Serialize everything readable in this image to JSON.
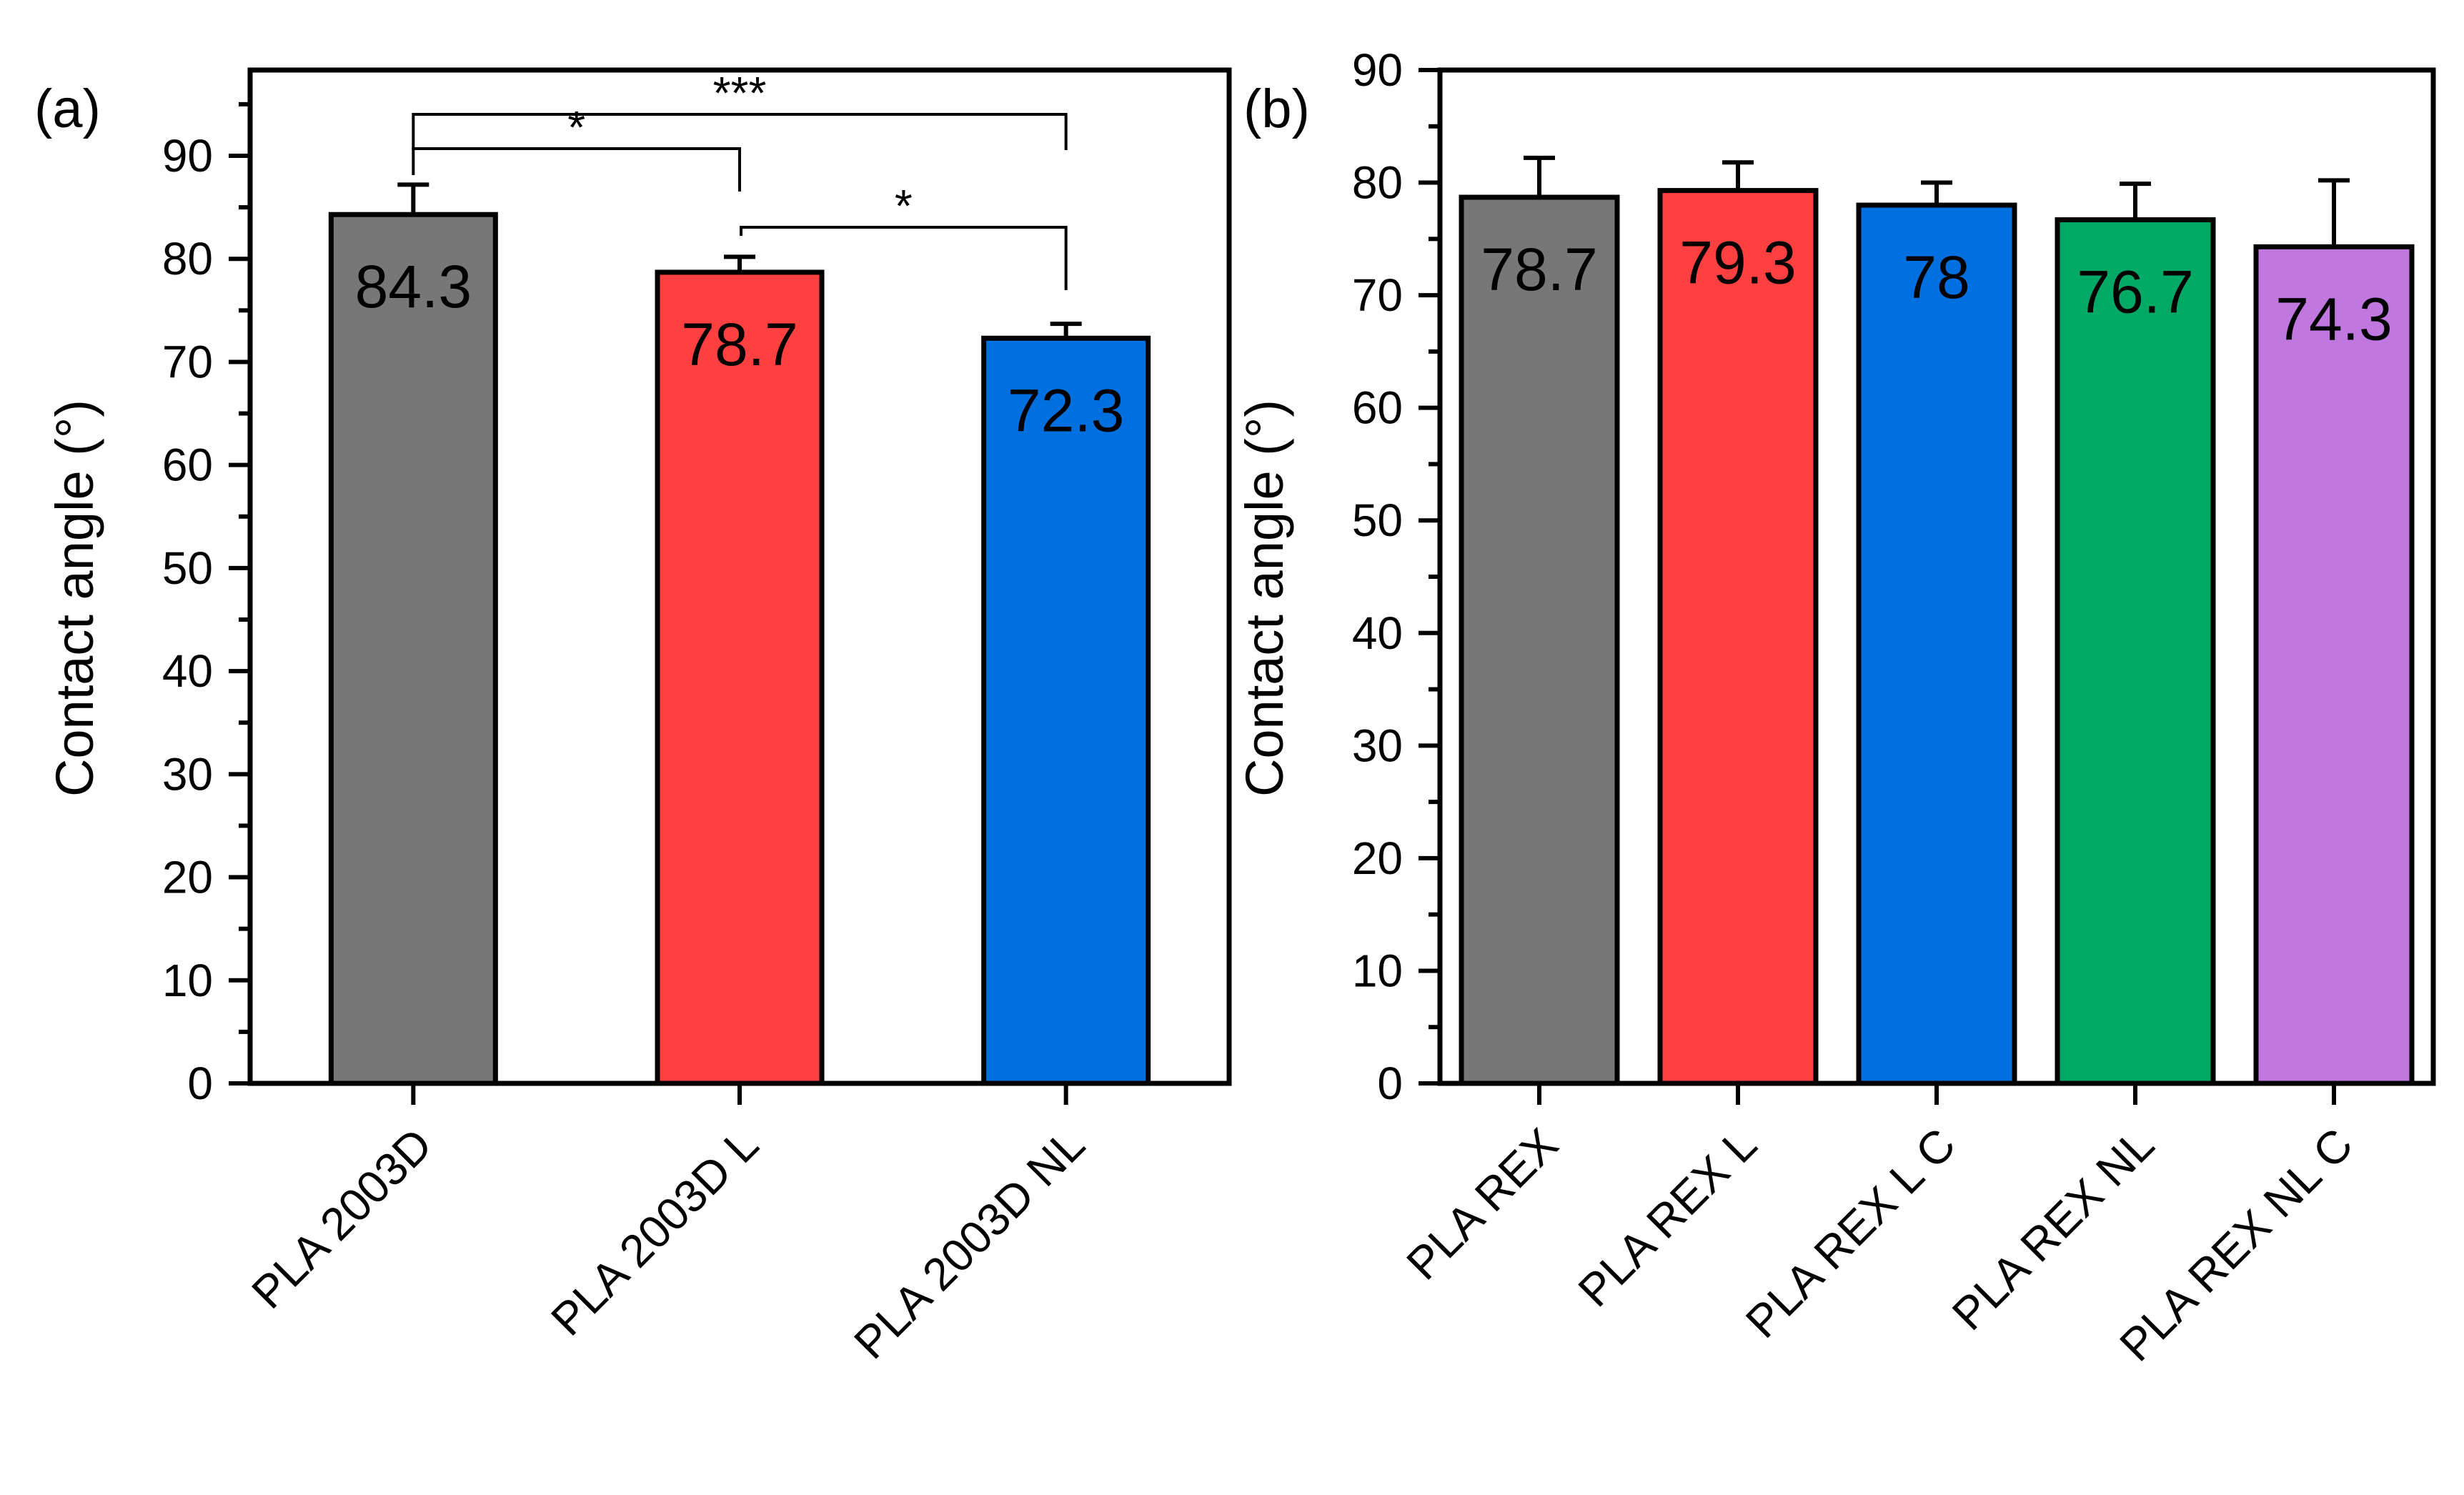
{
  "chart_data": [
    {
      "type": "bar",
      "panel_label": "(a)",
      "categories": [
        "PLA 2003D",
        "PLA 2003D L",
        "PLA 2003D NL"
      ],
      "values": [
        84.3,
        78.7,
        72.3
      ],
      "errors": [
        2.9,
        1.5,
        1.4
      ],
      "bar_labels": [
        "84.3",
        "78.7",
        "72.3"
      ],
      "colors": [
        "#777777",
        "#FF4040",
        "#0070E0"
      ],
      "ylabel": "Contact angle (°)",
      "xlabel": "",
      "ylim": [
        0,
        90
      ],
      "yticks": [
        "0",
        "10",
        "20",
        "30",
        "40",
        "50",
        "60",
        "70",
        "80",
        "90"
      ],
      "significance": [
        {
          "from": 0,
          "to": 1,
          "label": "*"
        },
        {
          "from": 0,
          "to": 2,
          "label": "***"
        },
        {
          "from": 1,
          "to": 2,
          "label": "*"
        }
      ]
    },
    {
      "type": "bar",
      "panel_label": "(b)",
      "categories": [
        "PLA REX",
        "PLA REX L",
        "PLA REX L C",
        "PLA REX NL",
        "PLA REX NL C"
      ],
      "values": [
        78.7,
        79.3,
        78,
        76.7,
        74.3
      ],
      "errors": [
        3.5,
        2.5,
        2.0,
        3.2,
        5.9
      ],
      "bar_labels": [
        "78.7",
        "79.3",
        "78",
        "76.7",
        "74.3"
      ],
      "colors": [
        "#777777",
        "#FF4040",
        "#0070E0",
        "#00AA66",
        "#C078E0"
      ],
      "ylabel": "Contact angle (°)",
      "xlabel": "",
      "ylim": [
        0,
        90
      ],
      "yticks": [
        "0",
        "10",
        "20",
        "30",
        "40",
        "50",
        "60",
        "70",
        "80",
        "90"
      ]
    }
  ]
}
